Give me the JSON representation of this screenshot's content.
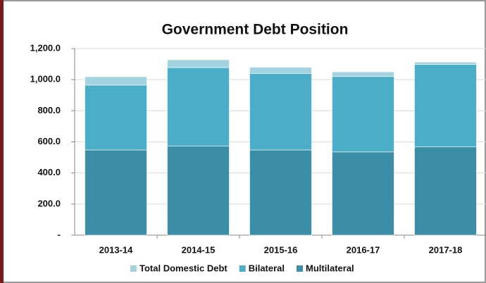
{
  "chart_data": {
    "type": "stacked_bar",
    "title": "Government  Debt Position",
    "categories": [
      "2013-14",
      "2014-15",
      "2015-16",
      "2016-17",
      "2017-18"
    ],
    "series": [
      {
        "name": "Total Domestic Debt",
        "color": "#a3d3e0",
        "values": [
          54,
          50,
          40,
          30,
          15
        ]
      },
      {
        "name": "Bilateral",
        "color": "#4badc7",
        "values": [
          417,
          506,
          492,
          485,
          530
        ]
      },
      {
        "name": "Multilateral",
        "color": "#3b8ea5",
        "values": [
          548,
          572,
          548,
          535,
          568
        ]
      }
    ],
    "ylim": [
      0,
      1200
    ],
    "yticks": [
      {
        "value": 0,
        "label": "-"
      },
      {
        "value": 200,
        "label": "200.0"
      },
      {
        "value": 400,
        "label": "400.0"
      },
      {
        "value": 600,
        "label": "600.0"
      },
      {
        "value": 800,
        "label": "800.0"
      },
      {
        "value": 1000,
        "label": "1,000.0"
      },
      {
        "value": 1200,
        "label": "1,200.0"
      }
    ],
    "grid": true,
    "legend": "bottom"
  }
}
